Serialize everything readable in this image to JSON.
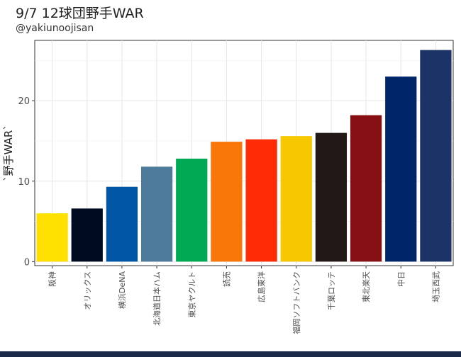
{
  "header": {
    "title": "9/7 12球団野手WAR",
    "subtitle": "@yakiunoojisan"
  },
  "chart_data": {
    "type": "bar",
    "title": "9/7 12球団野手WAR",
    "subtitle": "@yakiunoojisan",
    "xlabel": "",
    "ylabel": "`野手WAR`",
    "ylim": [
      -0.5,
      27.5
    ],
    "yticks": [
      0,
      10,
      20
    ],
    "grid": true,
    "legend": "none",
    "categories": [
      "阪神",
      "オリックス",
      "横浜DeNA",
      "北海道日本ハム",
      "東京ヤクルト",
      "読売",
      "広島東洋",
      "福岡ソフトバンク",
      "千葉ロッテ",
      "東北楽天",
      "中日",
      "埼玉西武"
    ],
    "values": [
      6.0,
      6.6,
      9.3,
      11.8,
      12.8,
      14.9,
      15.2,
      15.6,
      16.0,
      18.2,
      23.0,
      26.3
    ],
    "colors": [
      "#ffe100",
      "#000b22",
      "#0055a5",
      "#4e7b9b",
      "#00aa55",
      "#f97709",
      "#ff2b06",
      "#f7c700",
      "#221815",
      "#850f13",
      "#002569",
      "#1c3367"
    ]
  }
}
